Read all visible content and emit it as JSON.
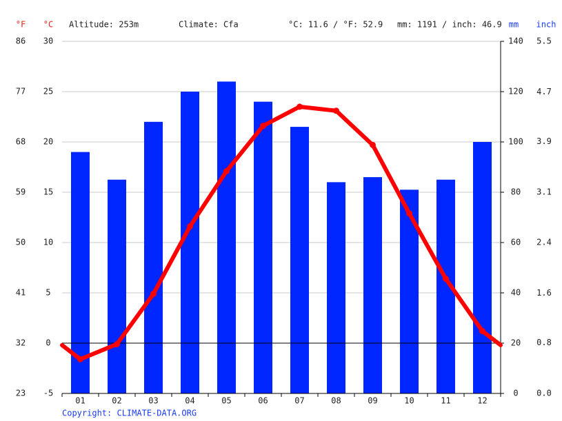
{
  "chart_data": {
    "type": "bar",
    "info": [
      "Altitude: 253m",
      "Climate: Cfa",
      "°C: 11.6 / °F: 52.9",
      "mm: 1191 / inch: 46.9"
    ],
    "ylabel": "°C",
    "y2label": "mm",
    "y3label": "°F",
    "y4label": "inch",
    "copyright": "Copyright: CLIMATE-DATA.ORG",
    "categories": [
      "01",
      "02",
      "03",
      "04",
      "05",
      "06",
      "07",
      "08",
      "09",
      "10",
      "11",
      "12"
    ],
    "series": [
      {
        "type": "bar",
        "axis": "y2",
        "color": "#0026ff",
        "values": [
          96,
          85,
          108,
          120,
          124,
          116,
          106,
          84,
          86,
          81,
          85,
          100
        ]
      },
      {
        "type": "line",
        "axis": "y",
        "color": "#ff0000",
        "values": [
          -1.6,
          -0.1,
          4.9,
          11.6,
          17.1,
          21.6,
          23.5,
          23.1,
          19.7,
          12.9,
          6.4,
          1.2
        ]
      }
    ],
    "ylim": [
      -5,
      30
    ],
    "yticks": [
      30,
      25,
      20,
      15,
      10,
      5,
      0,
      -5
    ],
    "y2lim": [
      0,
      140
    ],
    "y2ticks": [
      140,
      120,
      100,
      80,
      60,
      40,
      20,
      0
    ],
    "y3lim": [
      23,
      86
    ],
    "y3ticks": [
      86,
      77,
      68,
      59,
      50,
      41,
      32,
      23
    ],
    "y4lim": [
      0,
      5.51
    ],
    "y4ticks": [
      {
        "value": 5.51,
        "label": "5.5"
      },
      {
        "value": 4.72,
        "label": "4.7"
      },
      {
        "value": 3.94,
        "label": "3.9"
      },
      {
        "value": 3.15,
        "label": "3.1"
      },
      {
        "value": 2.36,
        "label": "2.4"
      },
      {
        "value": 1.57,
        "label": "1.6"
      },
      {
        "value": 0.79,
        "label": "0.8"
      },
      {
        "value": 0,
        "label": "0.0"
      }
    ],
    "grid": true,
    "left_color": "#e8231b",
    "right_color": "#1a3cf0"
  }
}
